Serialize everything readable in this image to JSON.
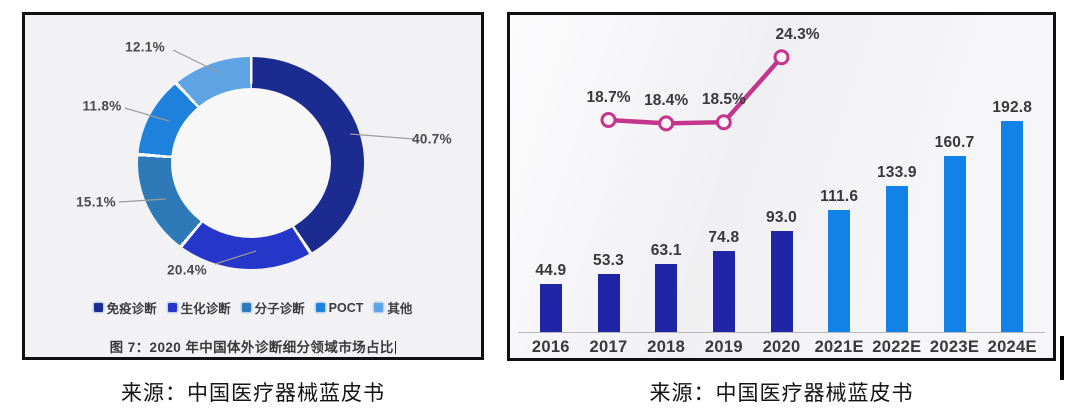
{
  "sources": {
    "left": "来源：中国医疗器械蓝皮书",
    "right": "来源：中国医疗器械蓝皮书"
  },
  "colors": {
    "line": "#c4368c",
    "leader_line": "#9a9a9a",
    "axis": "#b8b8bc",
    "label_text": "#3a3a3a",
    "bar_navy": "#1f25a5",
    "bar_light_blue": "#1382e8"
  },
  "chart_data": [
    {
      "type": "pie",
      "donut": true,
      "title": "图 7：2020 年中国体外诊断细分领域市场占比",
      "legend_position": "bottom",
      "source": "来源：中国医疗器械蓝皮书",
      "slices": [
        {
          "label": "免疫诊断",
          "value": 40.7,
          "pct_label": "40.7%",
          "color": "#1c2b8f"
        },
        {
          "label": "生化诊断",
          "value": 20.4,
          "pct_label": "20.4%",
          "color": "#2636c8"
        },
        {
          "label": "分子诊断",
          "value": 15.1,
          "pct_label": "15.1%",
          "color": "#2e7ab8"
        },
        {
          "label": "POCT",
          "value": 11.8,
          "pct_label": "11.8%",
          "color": "#1e81dc"
        },
        {
          "label": "其他",
          "value": 12.1,
          "pct_label": "12.1%",
          "color": "#5ea3e3"
        }
      ]
    },
    {
      "type": "bar",
      "title": "",
      "source": "来源：中国医疗器械蓝皮书",
      "categories": [
        "2016",
        "2017",
        "2018",
        "2019",
        "2020",
        "2021E",
        "2022E",
        "2023E",
        "2024E"
      ],
      "series": [
        {
          "name": "market-size-bars",
          "type": "bar",
          "values": [
            44.9,
            53.3,
            63.1,
            74.8,
            93.0,
            111.6,
            133.9,
            160.7,
            192.8
          ],
          "value_labels": [
            "44.9",
            "53.3",
            "63.1",
            "74.8",
            "93.0",
            "111.6",
            "133.9",
            "160.7",
            "192.8"
          ],
          "colors": [
            "#1f25a5",
            "#1f25a5",
            "#1f25a5",
            "#1f25a5",
            "#1f25a5",
            "#1382e8",
            "#1382e8",
            "#1382e8",
            "#1382e8"
          ]
        },
        {
          "name": "growth-rate-line",
          "type": "line",
          "color": "#c4368c",
          "x": [
            "2017",
            "2018",
            "2019",
            "2020"
          ],
          "values_pct": [
            18.7,
            18.4,
            18.5,
            24.3
          ],
          "labels": [
            "18.7%",
            "18.4%",
            "18.5%",
            "24.3%"
          ]
        }
      ],
      "grid": false,
      "legend": "none"
    }
  ]
}
